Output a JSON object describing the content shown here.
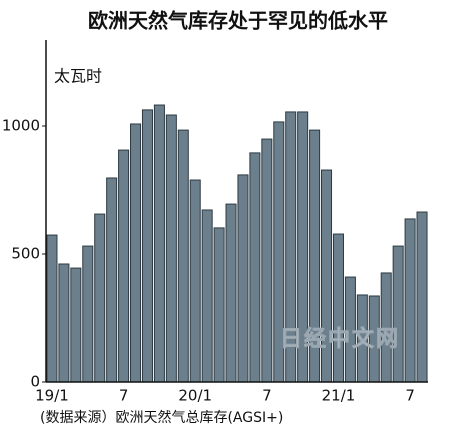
{
  "chart_data": {
    "type": "bar",
    "title": "欧洲天然气库存处于罕见的低水平",
    "y_axis_label": "太瓦时",
    "source": "(数据来源）欧洲天然气总库存(AGSI+)",
    "watermark": "日经中文网",
    "categories": [
      "19/1",
      null,
      null,
      null,
      null,
      null,
      "7",
      null,
      null,
      null,
      null,
      null,
      "20/1",
      null,
      null,
      null,
      null,
      null,
      "7",
      null,
      null,
      null,
      null,
      null,
      "21/1",
      null,
      null,
      null,
      null,
      null,
      "7",
      null
    ],
    "values": [
      574,
      461,
      445,
      531,
      656,
      797,
      906,
      1008,
      1063,
      1082,
      1043,
      984,
      789,
      672,
      602,
      695,
      809,
      895,
      949,
      1016,
      1055,
      1055,
      984,
      828,
      578,
      410,
      340,
      336,
      426,
      531,
      637,
      664
    ],
    "color": "#6b7f8c",
    "ylim": [
      0,
      1336
    ],
    "yticks": [
      0,
      500,
      1000
    ],
    "grid": false
  }
}
